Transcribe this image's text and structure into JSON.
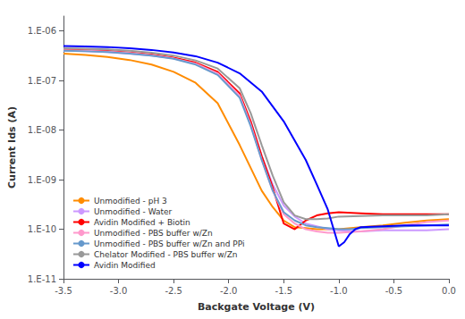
{
  "chart_data": {
    "type": "line",
    "xlabel": "Backgate Voltage (V)",
    "ylabel": "Current Ids (A)",
    "log": "y",
    "grid": false,
    "legend": "left",
    "xlim": [
      -3.5,
      0.0
    ],
    "xticks": [
      -3.5,
      {
        "value": -3.0,
        "label": "-3.0"
      },
      -2.5,
      {
        "value": -2.0,
        "label": "-2.0"
      },
      -1.5,
      {
        "value": -1.0,
        "label": "-1.0"
      },
      -0.5,
      {
        "value": 0.0,
        "label": "0.0"
      }
    ],
    "ylim": [
      1e-11,
      2e-06
    ],
    "yticks": [
      {
        "value": 1e-11,
        "label": "1.E-11"
      },
      {
        "value": 1e-10,
        "label": "1.E-10"
      },
      {
        "value": 1e-09,
        "label": "1.E-09"
      },
      {
        "value": 1e-08,
        "label": "1.E-08"
      },
      {
        "value": 1e-07,
        "label": "1.E-07"
      },
      {
        "value": 1e-06,
        "label": "1.E-06"
      }
    ],
    "series": [
      {
        "name": "Unmodified - pH 3",
        "color": "#FF8C00",
        "x": [
          -3.5,
          -3.3,
          -3.1,
          -2.9,
          -2.7,
          -2.5,
          -2.3,
          -2.1,
          -1.9,
          -1.7,
          -1.6,
          -1.5,
          -1.4,
          -1.3,
          -1.2,
          -1.1,
          -1.0,
          -0.8,
          -0.6,
          -0.4,
          -0.2,
          0.0
        ],
        "values": [
          3.5e-07,
          3.3e-07,
          3e-07,
          2.6e-07,
          2.1e-07,
          1.5e-07,
          9e-08,
          3.5e-08,
          5e-09,
          6e-10,
          2.8e-10,
          1.5e-10,
          1.1e-10,
          1.05e-10,
          1e-10,
          1e-10,
          1e-10,
          1.1e-10,
          1.2e-10,
          1.35e-10,
          1.5e-10,
          1.6e-10
        ]
      },
      {
        "name": "Unmodified - Water",
        "color": "#CC99FF",
        "x": [
          -3.5,
          -3.3,
          -3.1,
          -2.9,
          -2.7,
          -2.5,
          -2.3,
          -2.1,
          -1.9,
          -1.8,
          -1.7,
          -1.6,
          -1.5,
          -1.4,
          -1.3,
          -1.2,
          -1.1,
          -1.0,
          -0.8,
          -0.6,
          -0.4,
          -0.2,
          0.0
        ],
        "values": [
          4e-07,
          3.9e-07,
          3.75e-07,
          3.5e-07,
          3.2e-07,
          2.8e-07,
          2.2e-07,
          1.4e-07,
          5e-08,
          1.5e-08,
          3e-09,
          8e-10,
          3e-10,
          1.8e-10,
          1.3e-10,
          1.15e-10,
          1e-10,
          9.5e-11,
          9e-11,
          9.5e-11,
          9.5e-11,
          9.5e-11,
          1e-10
        ]
      },
      {
        "name": "Avidin Modified + Biotin",
        "color": "#FF0000",
        "x": [
          -3.5,
          -3.3,
          -3.1,
          -2.9,
          -2.7,
          -2.5,
          -2.3,
          -2.1,
          -1.9,
          -1.8,
          -1.7,
          -1.6,
          -1.5,
          -1.4,
          -1.3,
          -1.2,
          -1.1,
          -1.0,
          -0.8,
          -0.6,
          -0.4,
          -0.2,
          0.0
        ],
        "values": [
          4.2e-07,
          4.1e-07,
          3.95e-07,
          3.7e-07,
          3.35e-07,
          2.9e-07,
          2.3e-07,
          1.5e-07,
          5.5e-08,
          1.5e-08,
          3e-09,
          7e-10,
          1.3e-10,
          1e-10,
          1.5e-10,
          1.9e-10,
          2.1e-10,
          2.2e-10,
          2.1e-10,
          2e-10,
          2e-10,
          2e-10,
          2e-10
        ]
      },
      {
        "name": "Unmodified - PBS buffer w/Zn",
        "color": "#FF99CC",
        "x": [
          -3.5,
          -3.3,
          -3.1,
          -2.9,
          -2.7,
          -2.5,
          -2.3,
          -2.1,
          -1.9,
          -1.8,
          -1.7,
          -1.6,
          -1.5,
          -1.4,
          -1.3,
          -1.2,
          -1.1,
          -1.0,
          -0.8,
          -0.6,
          -0.4,
          -0.2,
          0.0
        ],
        "values": [
          4.1e-07,
          4e-07,
          3.85e-07,
          3.6e-07,
          3.25e-07,
          2.8e-07,
          2.2e-07,
          1.4e-07,
          5e-08,
          1.3e-08,
          2.5e-09,
          6e-10,
          2e-10,
          1.3e-10,
          1e-10,
          9e-11,
          8.5e-11,
          8.5e-11,
          9e-11,
          1e-10,
          1.2e-10,
          1.4e-10,
          1.5e-10
        ]
      },
      {
        "name": "Unmodified - PBS buffer w/Zn and PPi",
        "color": "#6699CC",
        "x": [
          -3.5,
          -3.3,
          -3.1,
          -2.9,
          -2.7,
          -2.5,
          -2.3,
          -2.1,
          -1.9,
          -1.8,
          -1.7,
          -1.6,
          -1.5,
          -1.4,
          -1.3,
          -1.2,
          -1.1,
          -1.0,
          -0.9,
          -0.8,
          -0.6,
          -0.4,
          -0.2,
          0.0
        ],
        "values": [
          4e-07,
          3.9e-07,
          3.75e-07,
          3.5e-07,
          3.2e-07,
          2.75e-07,
          2.1e-07,
          1.3e-07,
          4.5e-08,
          1.2e-08,
          2.5e-09,
          6e-10,
          2.2e-10,
          1.5e-10,
          1.2e-10,
          1.1e-10,
          1.05e-10,
          1e-10,
          1e-10,
          1.05e-10,
          1.1e-10,
          1.15e-10,
          1.2e-10,
          1.25e-10
        ]
      },
      {
        "name": "Chelator Modified - PBS buffer w/Zn",
        "color": "#999999",
        "x": [
          -3.5,
          -3.3,
          -3.1,
          -2.9,
          -2.7,
          -2.5,
          -2.3,
          -2.1,
          -1.9,
          -1.8,
          -1.7,
          -1.6,
          -1.5,
          -1.4,
          -1.3,
          -1.2,
          -1.1,
          -1.0,
          -0.8,
          -0.6,
          -0.4,
          -0.2,
          0.0
        ],
        "values": [
          4.5e-07,
          4.4e-07,
          4.25e-07,
          4e-07,
          3.65e-07,
          3.2e-07,
          2.55e-07,
          1.75e-07,
          7e-08,
          2.2e-08,
          5e-09,
          1.2e-09,
          3.5e-10,
          1.9e-10,
          1.6e-10,
          1.6e-10,
          1.65e-10,
          1.8e-10,
          1.85e-10,
          1.9e-10,
          1.9e-10,
          1.9e-10,
          2e-10
        ]
      },
      {
        "name": "Avidin Modified",
        "color": "#0000FF",
        "x": [
          -3.5,
          -3.3,
          -3.1,
          -2.9,
          -2.7,
          -2.5,
          -2.3,
          -2.1,
          -1.9,
          -1.7,
          -1.5,
          -1.3,
          -1.2,
          -1.1,
          -1.0,
          -0.95,
          -0.9,
          -0.85,
          -0.8,
          -0.6,
          -0.4,
          -0.2,
          0.0
        ],
        "values": [
          5e-07,
          4.9e-07,
          4.75e-07,
          4.5e-07,
          4.15e-07,
          3.7e-07,
          3.1e-07,
          2.3e-07,
          1.4e-07,
          6e-08,
          1.5e-08,
          2.5e-09,
          8e-10,
          2.5e-10,
          4.5e-11,
          5.5e-11,
          8e-11,
          1e-10,
          1.1e-10,
          1.15e-10,
          1.2e-10,
          1.2e-10,
          1.2e-10
        ]
      }
    ]
  }
}
